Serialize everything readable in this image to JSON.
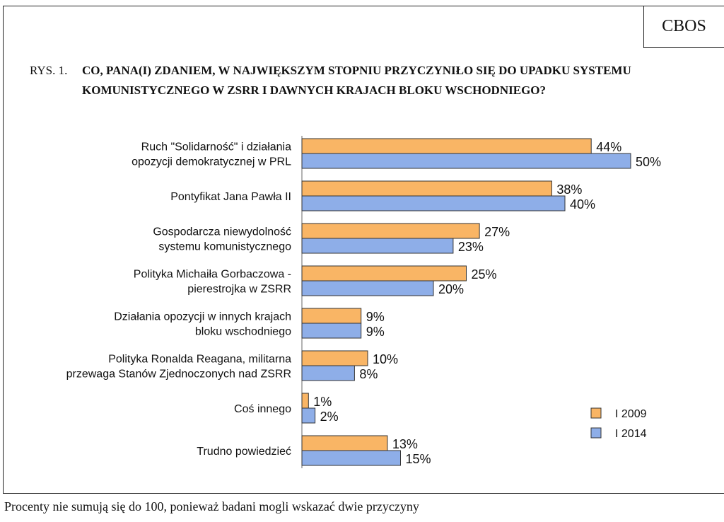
{
  "source_label": "CBOS",
  "figure_prefix": "RYS. 1.",
  "figure_title": "CO, PANA(I) ZDANIEM, W NAJWIĘKSZYM STOPNIU PRZYCZYNIŁO SIĘ DO UPADKU SYSTEMU KOMUNISTYCZNEGO W ZSRR I DAWNYCH KRAJACH BLOKU WSCHODNIEGO?",
  "footnote": "Procenty nie sumują się do 100, ponieważ badani mogli wskazać dwie przyczyny",
  "chart_data": {
    "type": "bar",
    "orientation": "horizontal",
    "categories": [
      [
        "Ruch \"Solidarność\" i działania",
        "opozycji demokratycznej w PRL"
      ],
      [
        "Pontyfikat Jana Pawła II"
      ],
      [
        "Gospodarcza niewydolność",
        "systemu komunistycznego"
      ],
      [
        "Polityka Michaiła Gorbaczowa -",
        "pierestrojka w ZSRR"
      ],
      [
        "Działania opozycji w innych krajach",
        "bloku wschodniego"
      ],
      [
        "Polityka Ronalda Reagana, militarna",
        "przewaga Stanów Zjednoczonych nad ZSRR"
      ],
      [
        "Coś innego"
      ],
      [
        "Trudno powiedzieć"
      ]
    ],
    "series": [
      {
        "name": "I 2009",
        "color": "#f9b565",
        "values": [
          44,
          38,
          27,
          25,
          9,
          10,
          1,
          13
        ]
      },
      {
        "name": "I 2014",
        "color": "#8eaee8",
        "values": [
          50,
          40,
          23,
          20,
          9,
          8,
          2,
          15
        ]
      }
    ],
    "value_suffix": "%",
    "legend_position": "bottom-right",
    "grid": false
  }
}
